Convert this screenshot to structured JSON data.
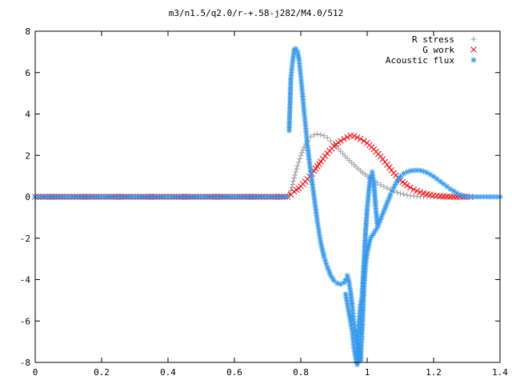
{
  "chart_data": {
    "type": "scatter",
    "title": "m3/n1.5/q2.0/r-+.58-j282/M4.0/512",
    "xlabel": "",
    "ylabel": "",
    "xlim": [
      0,
      1.4
    ],
    "ylim": [
      -8,
      8
    ],
    "x_ticks": [
      "0",
      "0.2",
      "0.4",
      "0.6",
      "0.8",
      "1",
      "1.2",
      "1.4"
    ],
    "y_ticks": [
      "8",
      "6",
      "4",
      "2",
      "0",
      "-2",
      "-4",
      "-6",
      "-8"
    ],
    "legend_position": "top-right",
    "series": [
      {
        "name": "R stress",
        "marker": "plus",
        "color": "#a0a0a0",
        "points": [
          [
            0.0,
            0.0
          ],
          [
            0.1,
            0.0
          ],
          [
            0.2,
            0.0
          ],
          [
            0.3,
            0.0
          ],
          [
            0.4,
            0.0
          ],
          [
            0.5,
            0.0
          ],
          [
            0.6,
            0.0
          ],
          [
            0.7,
            0.0
          ],
          [
            0.76,
            0.0
          ],
          [
            0.77,
            0.3
          ],
          [
            0.78,
            0.9
          ],
          [
            0.79,
            1.5
          ],
          [
            0.8,
            2.0
          ],
          [
            0.81,
            2.4
          ],
          [
            0.82,
            2.7
          ],
          [
            0.83,
            2.9
          ],
          [
            0.84,
            3.0
          ],
          [
            0.85,
            3.03
          ],
          [
            0.86,
            3.0
          ],
          [
            0.87,
            2.95
          ],
          [
            0.88,
            2.85
          ],
          [
            0.89,
            2.7
          ],
          [
            0.9,
            2.55
          ],
          [
            0.92,
            2.2
          ],
          [
            0.94,
            1.85
          ],
          [
            0.96,
            1.55
          ],
          [
            0.98,
            1.25
          ],
          [
            1.0,
            1.0
          ],
          [
            1.02,
            0.78
          ],
          [
            1.04,
            0.58
          ],
          [
            1.06,
            0.42
          ],
          [
            1.08,
            0.28
          ],
          [
            1.1,
            0.16
          ],
          [
            1.12,
            0.08
          ],
          [
            1.14,
            0.03
          ],
          [
            1.16,
            0.0
          ],
          [
            1.2,
            0.0
          ],
          [
            1.25,
            0.0
          ],
          [
            1.3,
            0.0
          ]
        ]
      },
      {
        "name": "G work",
        "marker": "cross",
        "color": "#ff0000",
        "points": [
          [
            0.0,
            0.0
          ],
          [
            0.1,
            0.0
          ],
          [
            0.2,
            0.0
          ],
          [
            0.3,
            0.0
          ],
          [
            0.4,
            0.0
          ],
          [
            0.5,
            0.0
          ],
          [
            0.6,
            0.0
          ],
          [
            0.7,
            0.0
          ],
          [
            0.76,
            0.0
          ],
          [
            0.77,
            0.1
          ],
          [
            0.78,
            0.25
          ],
          [
            0.8,
            0.5
          ],
          [
            0.82,
            0.85
          ],
          [
            0.84,
            1.25
          ],
          [
            0.86,
            1.7
          ],
          [
            0.88,
            2.1
          ],
          [
            0.9,
            2.45
          ],
          [
            0.92,
            2.7
          ],
          [
            0.94,
            2.88
          ],
          [
            0.95,
            2.95
          ],
          [
            0.96,
            2.93
          ],
          [
            0.98,
            2.8
          ],
          [
            1.0,
            2.6
          ],
          [
            1.02,
            2.3
          ],
          [
            1.04,
            1.95
          ],
          [
            1.06,
            1.55
          ],
          [
            1.08,
            1.15
          ],
          [
            1.1,
            0.8
          ],
          [
            1.12,
            0.55
          ],
          [
            1.14,
            0.35
          ],
          [
            1.16,
            0.22
          ],
          [
            1.18,
            0.13
          ],
          [
            1.2,
            0.07
          ],
          [
            1.22,
            0.03
          ],
          [
            1.25,
            0.0
          ],
          [
            1.28,
            0.0
          ],
          [
            1.31,
            0.0
          ]
        ]
      },
      {
        "name": "Acoustic flux",
        "marker": "star",
        "color": "#3399ee",
        "points": [
          [
            0.0,
            0.0
          ],
          [
            0.05,
            0.0
          ],
          [
            0.1,
            0.0
          ],
          [
            0.15,
            0.0
          ],
          [
            0.2,
            0.0
          ],
          [
            0.25,
            0.0
          ],
          [
            0.3,
            0.0
          ],
          [
            0.35,
            0.0
          ],
          [
            0.4,
            0.0
          ],
          [
            0.45,
            0.0
          ],
          [
            0.5,
            0.0
          ],
          [
            0.55,
            0.0
          ],
          [
            0.6,
            0.0
          ],
          [
            0.65,
            0.0
          ],
          [
            0.7,
            0.0
          ],
          [
            0.75,
            0.0
          ],
          [
            0.76,
            0.0
          ],
          [
            0.765,
            3.2
          ],
          [
            0.77,
            5.7
          ],
          [
            0.775,
            6.5
          ],
          [
            0.78,
            7.1
          ],
          [
            0.785,
            7.15
          ],
          [
            0.79,
            7.0
          ],
          [
            0.795,
            6.6
          ],
          [
            0.8,
            5.8
          ],
          [
            0.805,
            5.0
          ],
          [
            0.81,
            4.1
          ],
          [
            0.815,
            3.3
          ],
          [
            0.82,
            2.5
          ],
          [
            0.825,
            1.8
          ],
          [
            0.83,
            1.2
          ],
          [
            0.835,
            0.6
          ],
          [
            0.84,
            0.0
          ],
          [
            0.845,
            -0.6
          ],
          [
            0.85,
            -1.2
          ],
          [
            0.855,
            -1.7
          ],
          [
            0.86,
            -2.2
          ],
          [
            0.87,
            -2.9
          ],
          [
            0.88,
            -3.4
          ],
          [
            0.89,
            -3.8
          ],
          [
            0.9,
            -4.05
          ],
          [
            0.91,
            -4.18
          ],
          [
            0.92,
            -4.22
          ],
          [
            0.93,
            -4.15
          ],
          [
            0.935,
            -4.0
          ],
          [
            0.94,
            -3.8
          ],
          [
            0.945,
            -4.1
          ],
          [
            0.95,
            -4.6
          ],
          [
            0.955,
            -5.3
          ],
          [
            0.96,
            -6.1
          ],
          [
            0.965,
            -6.6
          ],
          [
            0.97,
            -7.1
          ],
          [
            0.975,
            -7.5
          ],
          [
            0.98,
            -7.9
          ],
          [
            0.985,
            -6.3
          ],
          [
            0.99,
            -4.5
          ],
          [
            0.995,
            -3.3
          ],
          [
            1.0,
            -2.7
          ],
          [
            1.005,
            -2.3
          ],
          [
            1.01,
            -2.0
          ],
          [
            1.02,
            -1.75
          ],
          [
            1.03,
            -1.5
          ],
          [
            1.04,
            -1.1
          ],
          [
            1.05,
            -0.7
          ],
          [
            1.06,
            -0.3
          ],
          [
            1.07,
            0.1
          ],
          [
            1.08,
            0.45
          ],
          [
            1.09,
            0.75
          ],
          [
            1.1,
            0.98
          ],
          [
            1.11,
            1.12
          ],
          [
            1.12,
            1.2
          ],
          [
            1.13,
            1.25
          ],
          [
            1.14,
            1.27
          ],
          [
            1.15,
            1.28
          ],
          [
            1.16,
            1.27
          ],
          [
            1.17,
            1.23
          ],
          [
            1.18,
            1.17
          ],
          [
            1.19,
            1.08
          ],
          [
            1.2,
            0.98
          ],
          [
            1.21,
            0.86
          ],
          [
            1.22,
            0.74
          ],
          [
            1.23,
            0.62
          ],
          [
            1.24,
            0.5
          ],
          [
            1.25,
            0.38
          ],
          [
            1.26,
            0.28
          ],
          [
            1.27,
            0.18
          ],
          [
            1.28,
            0.1
          ],
          [
            1.29,
            0.04
          ],
          [
            1.3,
            0.0
          ],
          [
            1.32,
            0.0
          ],
          [
            1.34,
            0.0
          ],
          [
            1.36,
            0.0
          ],
          [
            1.38,
            0.0
          ],
          [
            1.4,
            0.0
          ],
          [
            0.935,
            -4.7
          ],
          [
            0.945,
            -5.6
          ],
          [
            0.955,
            -6.5
          ],
          [
            0.96,
            -7.3
          ],
          [
            0.965,
            -7.8
          ],
          [
            0.97,
            -8.1
          ],
          [
            0.975,
            -6.2
          ],
          [
            0.98,
            -5.2
          ],
          [
            0.985,
            -4.7
          ],
          [
            0.99,
            -3.2
          ],
          [
            0.995,
            -1.7
          ],
          [
            1.0,
            -0.6
          ],
          [
            1.005,
            0.3
          ],
          [
            1.01,
            1.0
          ],
          [
            1.015,
            1.2
          ],
          [
            1.02,
            0.7
          ],
          [
            1.025,
            -0.4
          ],
          [
            1.03,
            -1.3
          ]
        ]
      }
    ]
  }
}
